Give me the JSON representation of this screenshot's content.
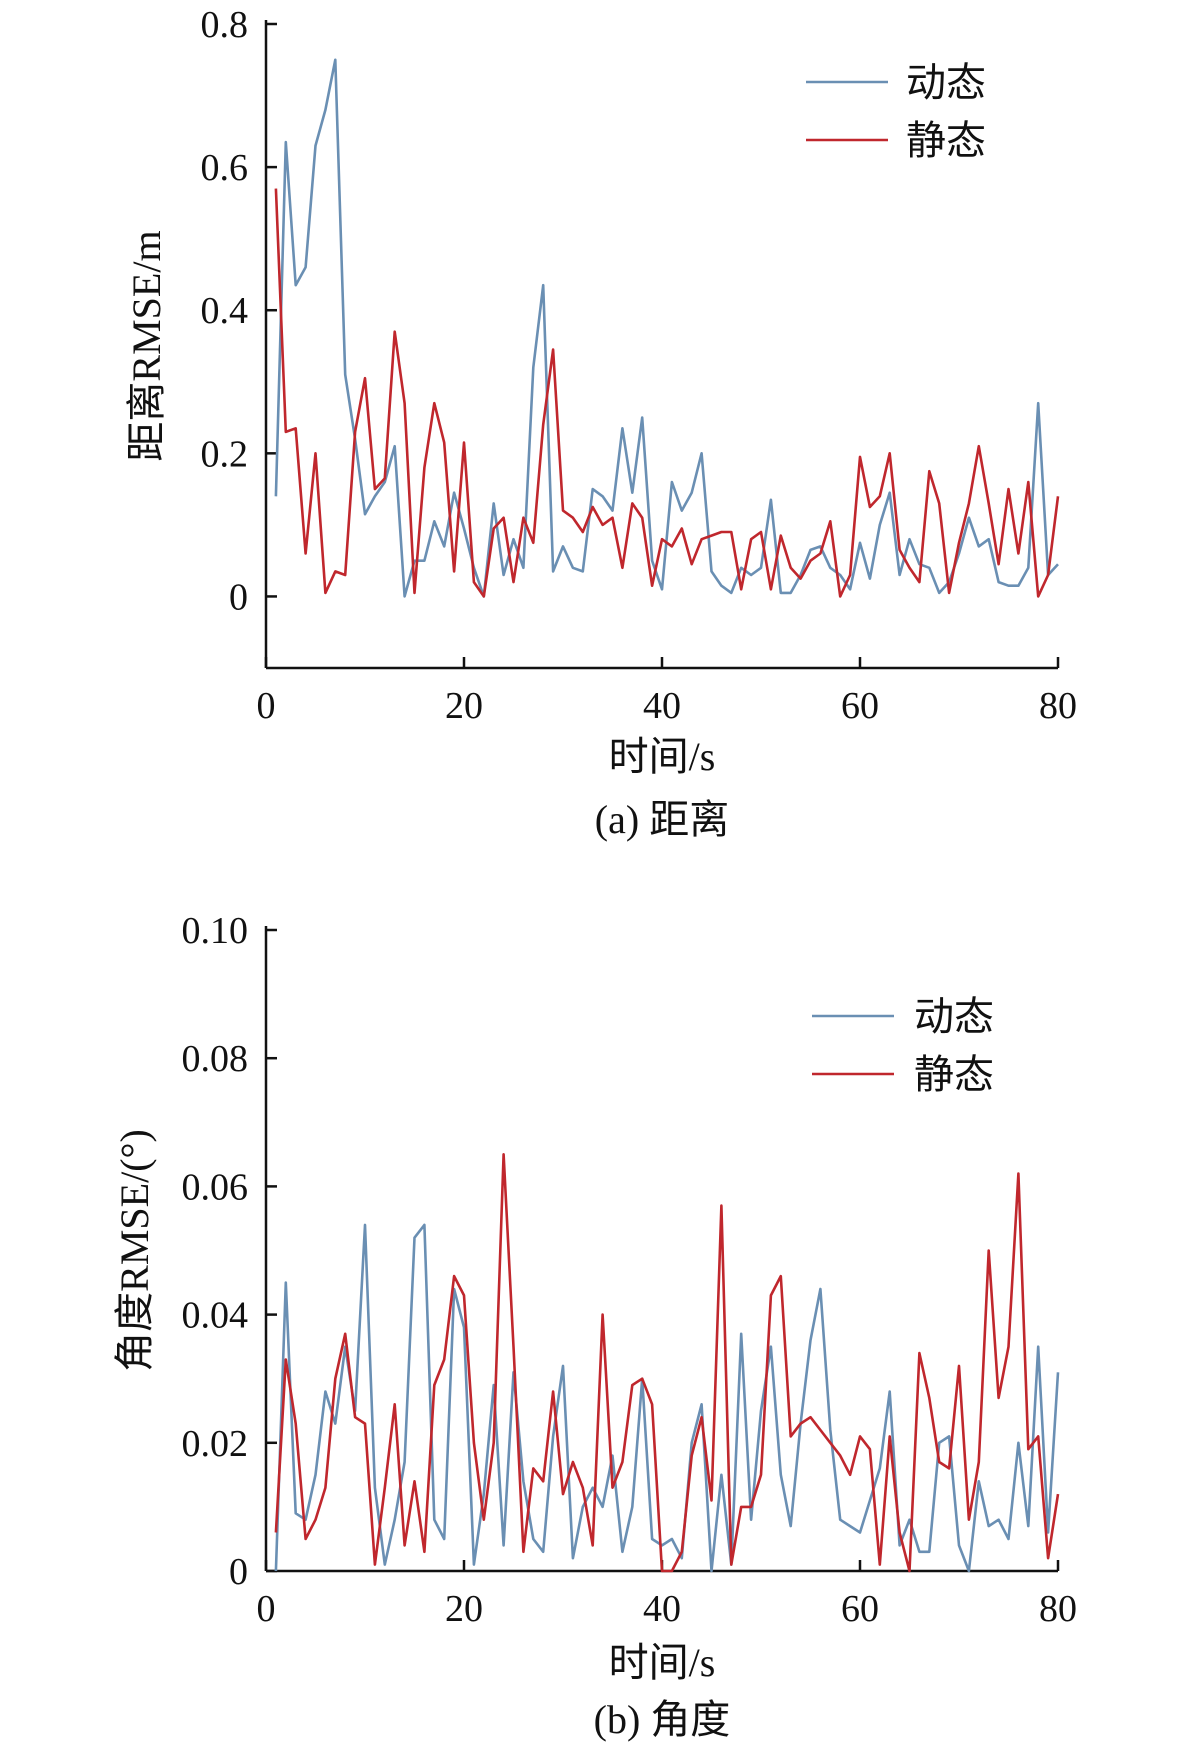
{
  "chart_data": [
    {
      "type": "line",
      "caption": "(a) 距离",
      "xlabel": "时间/s",
      "ylabel": "距离RMSE/m",
      "xlim": [
        0,
        80
      ],
      "ylim": [
        -0.1,
        0.8
      ],
      "xticks": [
        0,
        20,
        40,
        60,
        80
      ],
      "xtick_labels": [
        "0",
        "20",
        "40",
        "60",
        "80"
      ],
      "yticks": [
        0,
        0.2,
        0.4,
        0.6,
        0.8
      ],
      "ytick_labels": [
        "0",
        "0.2",
        "0.4",
        "0.6",
        "0.8"
      ],
      "legend_position": "top-right",
      "x": [
        1,
        2,
        3,
        4,
        5,
        6,
        7,
        8,
        9,
        10,
        11,
        12,
        13,
        14,
        15,
        16,
        17,
        18,
        19,
        20,
        21,
        22,
        23,
        24,
        25,
        26,
        27,
        28,
        29,
        30,
        31,
        32,
        33,
        34,
        35,
        36,
        37,
        38,
        39,
        40,
        41,
        42,
        43,
        44,
        45,
        46,
        47,
        48,
        49,
        50,
        51,
        52,
        53,
        54,
        55,
        56,
        57,
        58,
        59,
        60,
        61,
        62,
        63,
        64,
        65,
        66,
        67,
        68,
        69,
        70,
        71,
        72,
        73,
        74,
        75,
        76,
        77,
        78,
        79,
        80
      ],
      "series": [
        {
          "name": "动态",
          "color": "#6a8fb3",
          "values": [
            0.14,
            0.635,
            0.435,
            0.46,
            0.63,
            0.68,
            0.75,
            0.31,
            0.22,
            0.115,
            0.14,
            0.16,
            0.21,
            0.0,
            0.05,
            0.05,
            0.105,
            0.07,
            0.145,
            0.095,
            0.04,
            0.0,
            0.13,
            0.03,
            0.08,
            0.04,
            0.32,
            0.435,
            0.035,
            0.07,
            0.04,
            0.035,
            0.15,
            0.14,
            0.12,
            0.235,
            0.145,
            0.25,
            0.05,
            0.01,
            0.16,
            0.12,
            0.145,
            0.2,
            0.035,
            0.015,
            0.005,
            0.04,
            0.03,
            0.04,
            0.135,
            0.005,
            0.005,
            0.03,
            0.065,
            0.07,
            0.04,
            0.03,
            0.01,
            0.075,
            0.025,
            0.1,
            0.145,
            0.03,
            0.08,
            0.045,
            0.04,
            0.005,
            0.02,
            0.06,
            0.11,
            0.07,
            0.08,
            0.02,
            0.015,
            0.015,
            0.04,
            0.27,
            0.03,
            0.045
          ]
        },
        {
          "name": "静态",
          "color": "#c0272d",
          "values": [
            0.57,
            0.23,
            0.235,
            0.06,
            0.2,
            0.005,
            0.035,
            0.03,
            0.23,
            0.305,
            0.15,
            0.165,
            0.37,
            0.27,
            0.005,
            0.18,
            0.27,
            0.215,
            0.035,
            0.215,
            0.02,
            0.0,
            0.095,
            0.11,
            0.02,
            0.11,
            0.075,
            0.24,
            0.345,
            0.12,
            0.11,
            0.09,
            0.125,
            0.1,
            0.11,
            0.04,
            0.13,
            0.11,
            0.015,
            0.08,
            0.07,
            0.095,
            0.045,
            0.08,
            0.085,
            0.09,
            0.09,
            0.01,
            0.08,
            0.09,
            0.01,
            0.085,
            0.04,
            0.025,
            0.05,
            0.06,
            0.105,
            0.0,
            0.03,
            0.195,
            0.125,
            0.14,
            0.2,
            0.065,
            0.04,
            0.02,
            0.175,
            0.13,
            0.005,
            0.075,
            0.13,
            0.21,
            0.13,
            0.045,
            0.15,
            0.06,
            0.16,
            0.0,
            0.03,
            0.14
          ]
        }
      ]
    },
    {
      "type": "line",
      "caption": "(b) 角度",
      "xlabel": "时间/s",
      "ylabel": "角度RMSE/(°)",
      "xlim": [
        0,
        80
      ],
      "ylim": [
        0,
        0.1
      ],
      "xticks": [
        0,
        20,
        40,
        60,
        80
      ],
      "xtick_labels": [
        "0",
        "20",
        "40",
        "60",
        "80"
      ],
      "yticks": [
        0,
        0.02,
        0.04,
        0.06,
        0.08,
        0.1
      ],
      "ytick_labels": [
        "0",
        "0.02",
        "0.04",
        "0.06",
        "0.08",
        "0.10"
      ],
      "legend_position": "top-right",
      "x": [
        1,
        2,
        3,
        4,
        5,
        6,
        7,
        8,
        9,
        10,
        11,
        12,
        13,
        14,
        15,
        16,
        17,
        18,
        19,
        20,
        21,
        22,
        23,
        24,
        25,
        26,
        27,
        28,
        29,
        30,
        31,
        32,
        33,
        34,
        35,
        36,
        37,
        38,
        39,
        40,
        41,
        42,
        43,
        44,
        45,
        46,
        47,
        48,
        49,
        50,
        51,
        52,
        53,
        54,
        55,
        56,
        57,
        58,
        59,
        60,
        61,
        62,
        63,
        64,
        65,
        66,
        67,
        68,
        69,
        70,
        71,
        72,
        73,
        74,
        75,
        76,
        77,
        78,
        79,
        80
      ],
      "series": [
        {
          "name": "动态",
          "color": "#6a8fb3",
          "values": [
            0.0,
            0.045,
            0.009,
            0.008,
            0.015,
            0.028,
            0.023,
            0.035,
            0.025,
            0.054,
            0.013,
            0.001,
            0.008,
            0.017,
            0.052,
            0.054,
            0.008,
            0.005,
            0.044,
            0.038,
            0.001,
            0.012,
            0.029,
            0.004,
            0.031,
            0.014,
            0.005,
            0.003,
            0.021,
            0.032,
            0.002,
            0.01,
            0.013,
            0.01,
            0.018,
            0.003,
            0.01,
            0.03,
            0.005,
            0.004,
            0.005,
            0.002,
            0.02,
            0.026,
            0.0,
            0.015,
            0.001,
            0.037,
            0.008,
            0.025,
            0.035,
            0.015,
            0.007,
            0.023,
            0.036,
            0.044,
            0.022,
            0.008,
            0.007,
            0.006,
            0.011,
            0.016,
            0.028,
            0.004,
            0.008,
            0.003,
            0.003,
            0.02,
            0.021,
            0.004,
            0.0,
            0.014,
            0.007,
            0.008,
            0.005,
            0.02,
            0.007,
            0.035,
            0.006,
            0.031
          ]
        },
        {
          "name": "静态",
          "color": "#c0272d",
          "values": [
            0.006,
            0.033,
            0.023,
            0.005,
            0.008,
            0.013,
            0.03,
            0.037,
            0.024,
            0.023,
            0.001,
            0.013,
            0.026,
            0.004,
            0.014,
            0.003,
            0.029,
            0.033,
            0.046,
            0.043,
            0.02,
            0.008,
            0.02,
            0.065,
            0.035,
            0.003,
            0.016,
            0.014,
            0.028,
            0.012,
            0.017,
            0.013,
            0.004,
            0.04,
            0.013,
            0.017,
            0.029,
            0.03,
            0.026,
            0.0,
            0.0,
            0.003,
            0.018,
            0.024,
            0.011,
            0.057,
            0.001,
            0.01,
            0.01,
            0.015,
            0.043,
            0.046,
            0.021,
            0.023,
            0.024,
            0.022,
            0.02,
            0.018,
            0.015,
            0.021,
            0.019,
            0.001,
            0.021,
            0.006,
            0.0,
            0.034,
            0.027,
            0.017,
            0.016,
            0.032,
            0.008,
            0.017,
            0.05,
            0.027,
            0.035,
            0.062,
            0.019,
            0.021,
            0.002,
            0.012
          ]
        }
      ]
    }
  ]
}
